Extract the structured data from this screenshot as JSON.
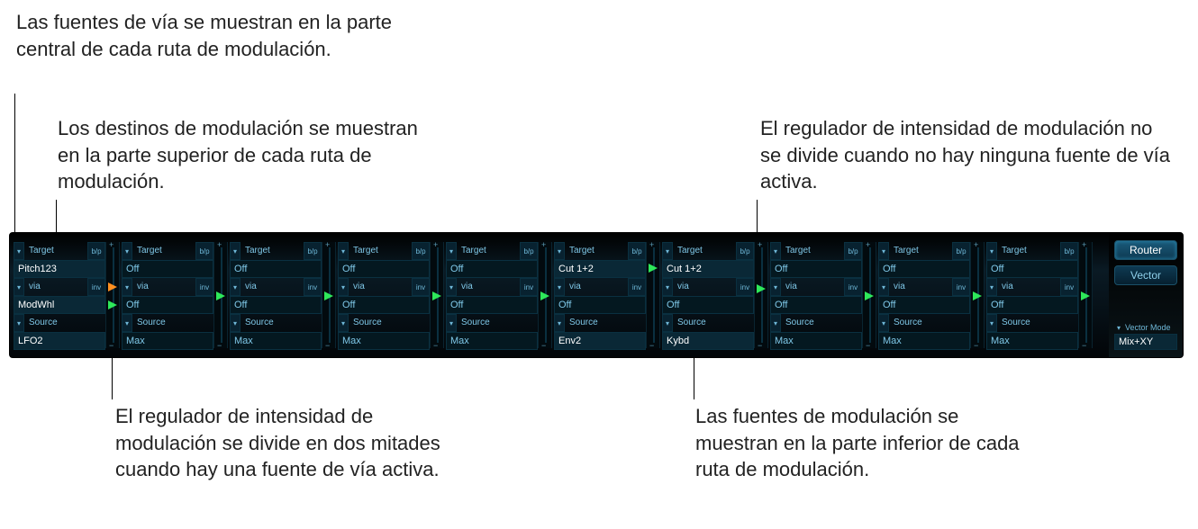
{
  "annotations": {
    "top_left_1": "Las fuentes de vía se muestran en la parte central de cada ruta de modulación.",
    "top_left_2": "Los destinos de modulación se muestran en la parte superior de cada ruta de modulación.",
    "top_right": "El regulador de intensidad de modulación no se divide cuando no hay ninguna fuente de vía activa.",
    "bottom_left": "El regulador de intensidad de modulación se divide en dos mitades cuando hay una fuente de vía activa.",
    "bottom_right": "Las fuentes de modulación se muestran en la parte inferior de cada ruta de modulación."
  },
  "row_headers": {
    "target": "Target",
    "via": "via",
    "source": "Source",
    "bp": "b/p",
    "inv": "inv"
  },
  "slots": [
    {
      "target": "Pitch123",
      "via": "ModWhl",
      "source": "LFO2",
      "active": true,
      "split": true,
      "handle1_pct": 40,
      "handle1_color": "orange",
      "handle2_pct": 60,
      "handle2_color": "green"
    },
    {
      "target": "Off",
      "via": "Off",
      "source": "Max",
      "active": false,
      "split": false,
      "handle1_pct": 50,
      "handle1_color": "green"
    },
    {
      "target": "Off",
      "via": "Off",
      "source": "Max",
      "active": false,
      "split": false,
      "handle1_pct": 50,
      "handle1_color": "green"
    },
    {
      "target": "Off",
      "via": "Off",
      "source": "Max",
      "active": false,
      "split": false,
      "handle1_pct": 50,
      "handle1_color": "green"
    },
    {
      "target": "Off",
      "via": "Off",
      "source": "Max",
      "active": false,
      "split": false,
      "handle1_pct": 50,
      "handle1_color": "green"
    },
    {
      "target": "Cut 1+2",
      "via": "Off",
      "source": "Env2",
      "active": true,
      "split": false,
      "handle1_pct": 18,
      "handle1_color": "green"
    },
    {
      "target": "Cut 1+2",
      "via": "Off",
      "source": "Kybd",
      "active": true,
      "split": false,
      "handle1_pct": 42,
      "handle1_color": "green"
    },
    {
      "target": "Off",
      "via": "Off",
      "source": "Max",
      "active": false,
      "split": false,
      "handle1_pct": 50,
      "handle1_color": "green"
    },
    {
      "target": "Off",
      "via": "Off",
      "source": "Max",
      "active": false,
      "split": false,
      "handle1_pct": 50,
      "handle1_color": "green"
    },
    {
      "target": "Off",
      "via": "Off",
      "source": "Max",
      "active": false,
      "split": false,
      "handle1_pct": 50,
      "handle1_color": "green"
    }
  ],
  "right": {
    "btn1": "Router",
    "btn2": "Vector",
    "mode_label": "Vector Mode",
    "mode_value": "Mix+XY"
  },
  "colors": {
    "panel_bg": "#020508",
    "cell_bg": "#041820",
    "cell_active_bg": "#0a2836",
    "text": "#7fc8e8",
    "text_dim": "#3a5866",
    "text_bright": "#ffffff",
    "green": "#2ee85a",
    "orange": "#ff9020"
  }
}
